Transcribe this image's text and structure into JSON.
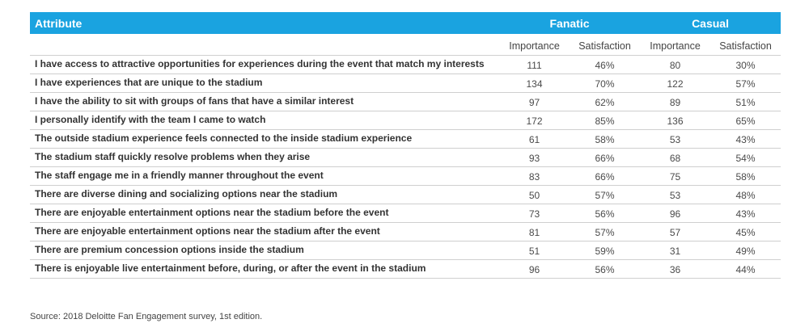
{
  "header": {
    "attribute": "Attribute",
    "groups": [
      "Fanatic",
      "Casual"
    ],
    "subcolumns": [
      "Importance",
      "Satisfaction",
      "Importance",
      "Satisfaction"
    ]
  },
  "rows": [
    {
      "attribute": "I have access to attractive opportunities for experiences during the event that match my interests",
      "fan_imp": "111",
      "fan_sat": "46%",
      "cas_imp": "80",
      "cas_sat": "30%"
    },
    {
      "attribute": "I have experiences that are unique to the stadium",
      "fan_imp": "134",
      "fan_sat": "70%",
      "cas_imp": "122",
      "cas_sat": "57%"
    },
    {
      "attribute": "I have the ability to sit with groups of fans that have a similar interest",
      "fan_imp": "97",
      "fan_sat": "62%",
      "cas_imp": "89",
      "cas_sat": "51%"
    },
    {
      "attribute": "I personally identify with the team I came to watch",
      "fan_imp": "172",
      "fan_sat": "85%",
      "cas_imp": "136",
      "cas_sat": "65%"
    },
    {
      "attribute": "The outside stadium experience feels connected to the inside stadium experience",
      "fan_imp": "61",
      "fan_sat": "58%",
      "cas_imp": "53",
      "cas_sat": "43%"
    },
    {
      "attribute": "The stadium staff quickly resolve problems when they arise",
      "fan_imp": "93",
      "fan_sat": "66%",
      "cas_imp": "68",
      "cas_sat": "54%"
    },
    {
      "attribute": "The staff engage me in a friendly manner throughout the event",
      "fan_imp": "83",
      "fan_sat": "66%",
      "cas_imp": "75",
      "cas_sat": "58%"
    },
    {
      "attribute": "There are diverse dining and socializing options near the stadium",
      "fan_imp": "50",
      "fan_sat": "57%",
      "cas_imp": "53",
      "cas_sat": "48%"
    },
    {
      "attribute": "There are enjoyable entertainment options near the stadium before the event",
      "fan_imp": "73",
      "fan_sat": "56%",
      "cas_imp": "96",
      "cas_sat": "43%"
    },
    {
      "attribute": "There are enjoyable entertainment options near the stadium after the event",
      "fan_imp": "81",
      "fan_sat": "57%",
      "cas_imp": "57",
      "cas_sat": "45%"
    },
    {
      "attribute": "There are premium concession options inside the stadium",
      "fan_imp": "51",
      "fan_sat": "59%",
      "cas_imp": "31",
      "cas_sat": "49%"
    },
    {
      "attribute": "There is enjoyable live entertainment before, during, or after the event in the stadium",
      "fan_imp": "96",
      "fan_sat": "56%",
      "cas_imp": "36",
      "cas_sat": "44%"
    }
  ],
  "source": "Source: 2018 Deloitte Fan Engagement survey, 1st edition.",
  "colors": {
    "header_bg": "#1aa3e0",
    "header_text": "#ffffff",
    "rule": "#cfcfcf"
  }
}
